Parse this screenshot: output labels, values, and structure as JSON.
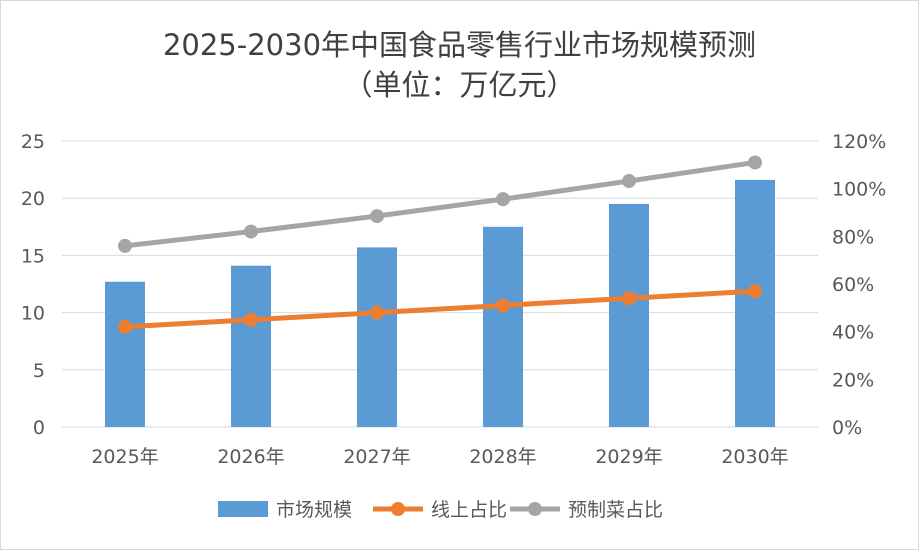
{
  "chart_data": {
    "type": "bar+line",
    "title": "2025-2030年中国食品零售行业市场规模预测",
    "subtitle": "（单位：万亿元）",
    "categories": [
      "2025年",
      "2026年",
      "2027年",
      "2028年",
      "2029年",
      "2030年"
    ],
    "series": [
      {
        "name": "市场规模",
        "type": "bar",
        "axis": "left",
        "color": "#5b9bd5",
        "values": [
          12.7,
          14.1,
          15.7,
          17.5,
          19.5,
          21.6
        ]
      },
      {
        "name": "线上占比",
        "type": "line",
        "axis": "right",
        "color": "#ed7d31",
        "values": [
          0.42,
          0.45,
          0.48,
          0.51,
          0.54,
          0.57
        ]
      },
      {
        "name": "预制菜占比",
        "type": "line",
        "axis": "right",
        "color": "#a5a5a5",
        "values": [
          0.76,
          0.82,
          0.885,
          0.956,
          1.032,
          1.11
        ]
      }
    ],
    "left_axis": {
      "ylim": [
        0,
        25
      ],
      "ticks": [
        "0",
        "5",
        "10",
        "15",
        "20",
        "25"
      ]
    },
    "right_axis": {
      "ylim": [
        0,
        1.2
      ],
      "ticks": [
        "0%",
        "20%",
        "40%",
        "60%",
        "80%",
        "100%",
        "120%"
      ]
    },
    "grid": true,
    "legend": "bottom"
  }
}
